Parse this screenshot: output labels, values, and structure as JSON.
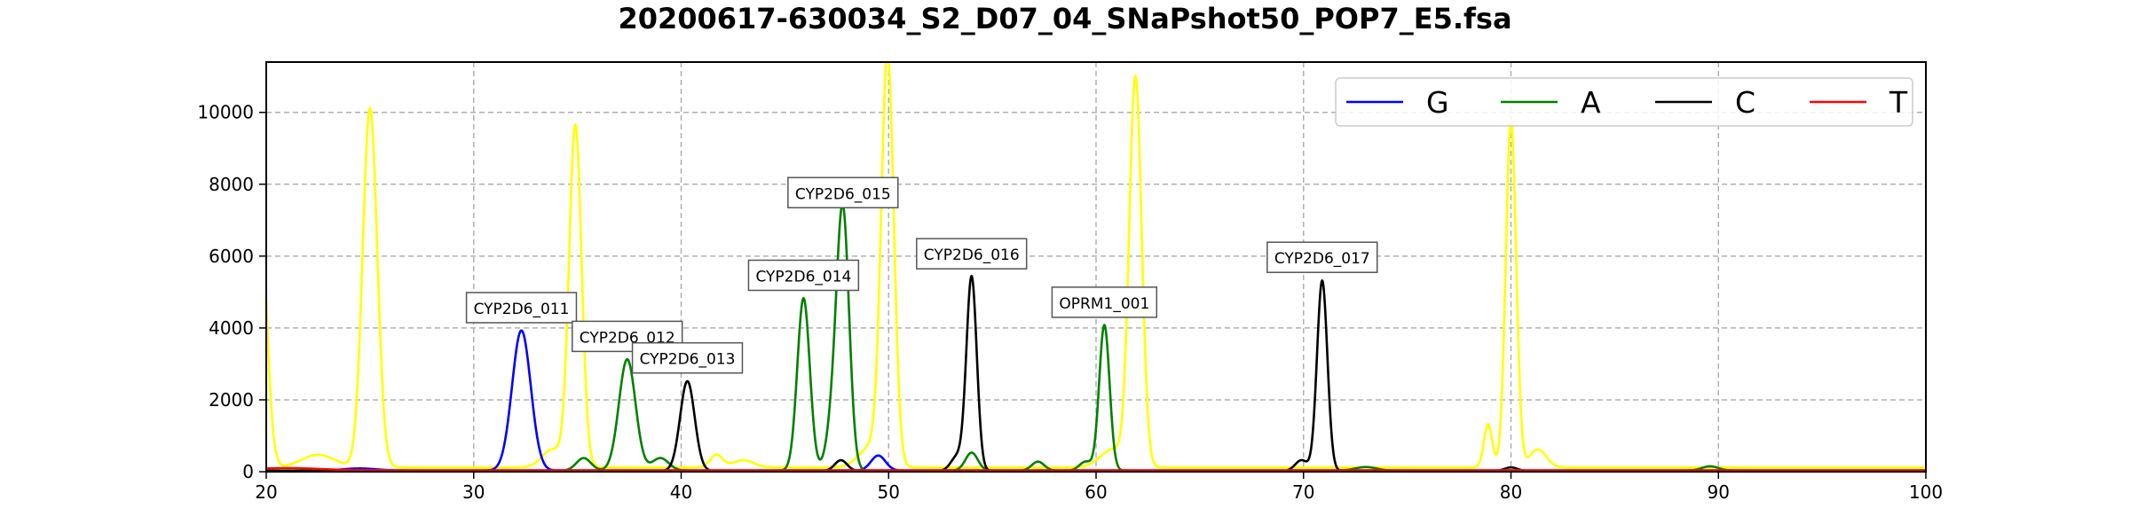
{
  "chart_data": {
    "type": "line",
    "title": "20200617-630034_S2_D07_04_SNaPshot50_POP7_E5.fsa",
    "xlabel": "",
    "ylabel": "",
    "xlim": [
      20,
      100
    ],
    "ylim": [
      0,
      11400
    ],
    "grid": true,
    "legend_position": "top-right",
    "x_ticks": [
      20,
      30,
      40,
      50,
      60,
      70,
      80,
      90,
      100
    ],
    "y_ticks": [
      0,
      2000,
      4000,
      6000,
      8000,
      10000
    ],
    "series": [
      {
        "name": "G",
        "color": "#0000ff",
        "legend": true,
        "baseline": 30,
        "peaks": [
          [
            32.3,
            3900,
            0.45
          ],
          [
            49.5,
            420,
            0.35
          ],
          [
            24.5,
            60,
            0.8
          ]
        ]
      },
      {
        "name": "A",
        "color": "#008000",
        "legend": true,
        "baseline": 30,
        "peaks": [
          [
            37.4,
            3100,
            0.4
          ],
          [
            35.3,
            350,
            0.35
          ],
          [
            39.0,
            350,
            0.4
          ],
          [
            45.9,
            4800,
            0.3
          ],
          [
            47.3,
            1200,
            0.3
          ],
          [
            47.8,
            7100,
            0.3
          ],
          [
            54.0,
            500,
            0.3
          ],
          [
            57.2,
            250,
            0.3
          ],
          [
            59.5,
            250,
            0.3
          ],
          [
            60.4,
            4050,
            0.25
          ],
          [
            73.0,
            100,
            0.5
          ],
          [
            89.6,
            120,
            0.4
          ]
        ]
      },
      {
        "name": "C",
        "color": "#000000",
        "legend": true,
        "baseline": 20,
        "peaks": [
          [
            40.3,
            2500,
            0.35
          ],
          [
            47.7,
            300,
            0.3
          ],
          [
            53.3,
            400,
            0.3
          ],
          [
            54.0,
            5400,
            0.25
          ],
          [
            69.9,
            300,
            0.3
          ],
          [
            70.9,
            5300,
            0.25
          ],
          [
            80.0,
            100,
            0.3
          ]
        ]
      },
      {
        "name": "T",
        "color": "#ff0000",
        "legend": true,
        "baseline": 40,
        "peaks": [
          [
            21.0,
            60,
            1.5
          ]
        ]
      },
      {
        "name": "",
        "color": "#ffff00",
        "legend": false,
        "baseline": 120,
        "peaks": [
          [
            19.6,
            9000,
            0.35
          ],
          [
            22.5,
            350,
            0.8
          ],
          [
            25.0,
            10000,
            0.35
          ],
          [
            34.9,
            9500,
            0.3
          ],
          [
            33.8,
            500,
            0.5
          ],
          [
            41.7,
            350,
            0.3
          ],
          [
            43.0,
            200,
            0.5
          ],
          [
            49.2,
            600,
            0.6
          ],
          [
            49.95,
            11300,
            0.3
          ],
          [
            61.9,
            10800,
            0.3
          ],
          [
            60.8,
            500,
            0.6
          ],
          [
            78.9,
            1200,
            0.2
          ],
          [
            80.0,
            9600,
            0.25
          ],
          [
            81.3,
            500,
            0.4
          ]
        ]
      }
    ],
    "annotations": [
      {
        "text": "CYP2D6_011",
        "x": 32.3,
        "y": 3900
      },
      {
        "text": "CYP2D6_012",
        "x": 37.4,
        "y": 3100
      },
      {
        "text": "CYP2D6_013",
        "x": 40.3,
        "y": 2500
      },
      {
        "text": "CYP2D6_014",
        "x": 45.9,
        "y": 4800
      },
      {
        "text": "CYP2D6_015",
        "x": 47.8,
        "y": 7100
      },
      {
        "text": "CYP2D6_016",
        "x": 54.0,
        "y": 5400
      },
      {
        "text": "OPRM1_001",
        "x": 60.4,
        "y": 4050
      },
      {
        "text": "CYP2D6_017",
        "x": 70.9,
        "y": 5300
      }
    ]
  }
}
